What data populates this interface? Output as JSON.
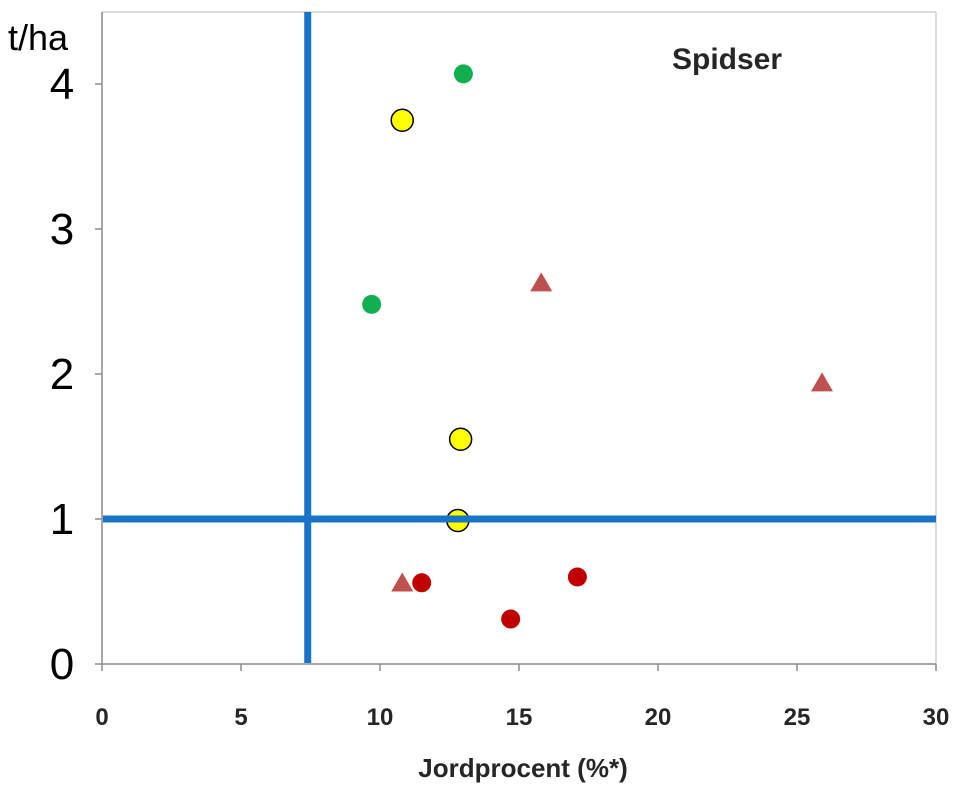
{
  "chart_data": {
    "type": "scatter",
    "title": "Spidser",
    "xlabel": "Jordprocent (%*)",
    "ylabel": "t/ha",
    "xlim": [
      0,
      30
    ],
    "ylim": [
      0,
      4.5
    ],
    "x_ticks": [
      "0",
      "5",
      "10",
      "15",
      "20",
      "25",
      "30"
    ],
    "y_ticks": [
      "0",
      "1",
      "2",
      "3",
      "4"
    ],
    "grid": false,
    "legend": "none",
    "reference_lines": [
      {
        "orientation": "vertical",
        "x": 7.4,
        "color": "#1874c8"
      },
      {
        "orientation": "horizontal",
        "y": 1.0,
        "color": "#1874c8"
      }
    ],
    "series": [
      {
        "marker": "circle",
        "color": "#10b050",
        "points": [
          {
            "x": 13.0,
            "y": 4.07
          },
          {
            "x": 9.7,
            "y": 2.48
          }
        ]
      },
      {
        "marker": "circle",
        "color": "#ffff00",
        "stroke": "#000000",
        "points": [
          {
            "x": 10.8,
            "y": 3.75
          },
          {
            "x": 12.9,
            "y": 1.55
          },
          {
            "x": 12.8,
            "y": 0.99
          }
        ]
      },
      {
        "marker": "triangle",
        "color": "#c0504d",
        "points": [
          {
            "x": 15.8,
            "y": 2.62
          },
          {
            "x": 25.9,
            "y": 1.93
          },
          {
            "x": 10.8,
            "y": 0.55
          }
        ]
      },
      {
        "marker": "circle",
        "color": "#c00000",
        "points": [
          {
            "x": 11.5,
            "y": 0.56
          },
          {
            "x": 17.1,
            "y": 0.6
          },
          {
            "x": 14.7,
            "y": 0.31
          }
        ]
      }
    ]
  }
}
